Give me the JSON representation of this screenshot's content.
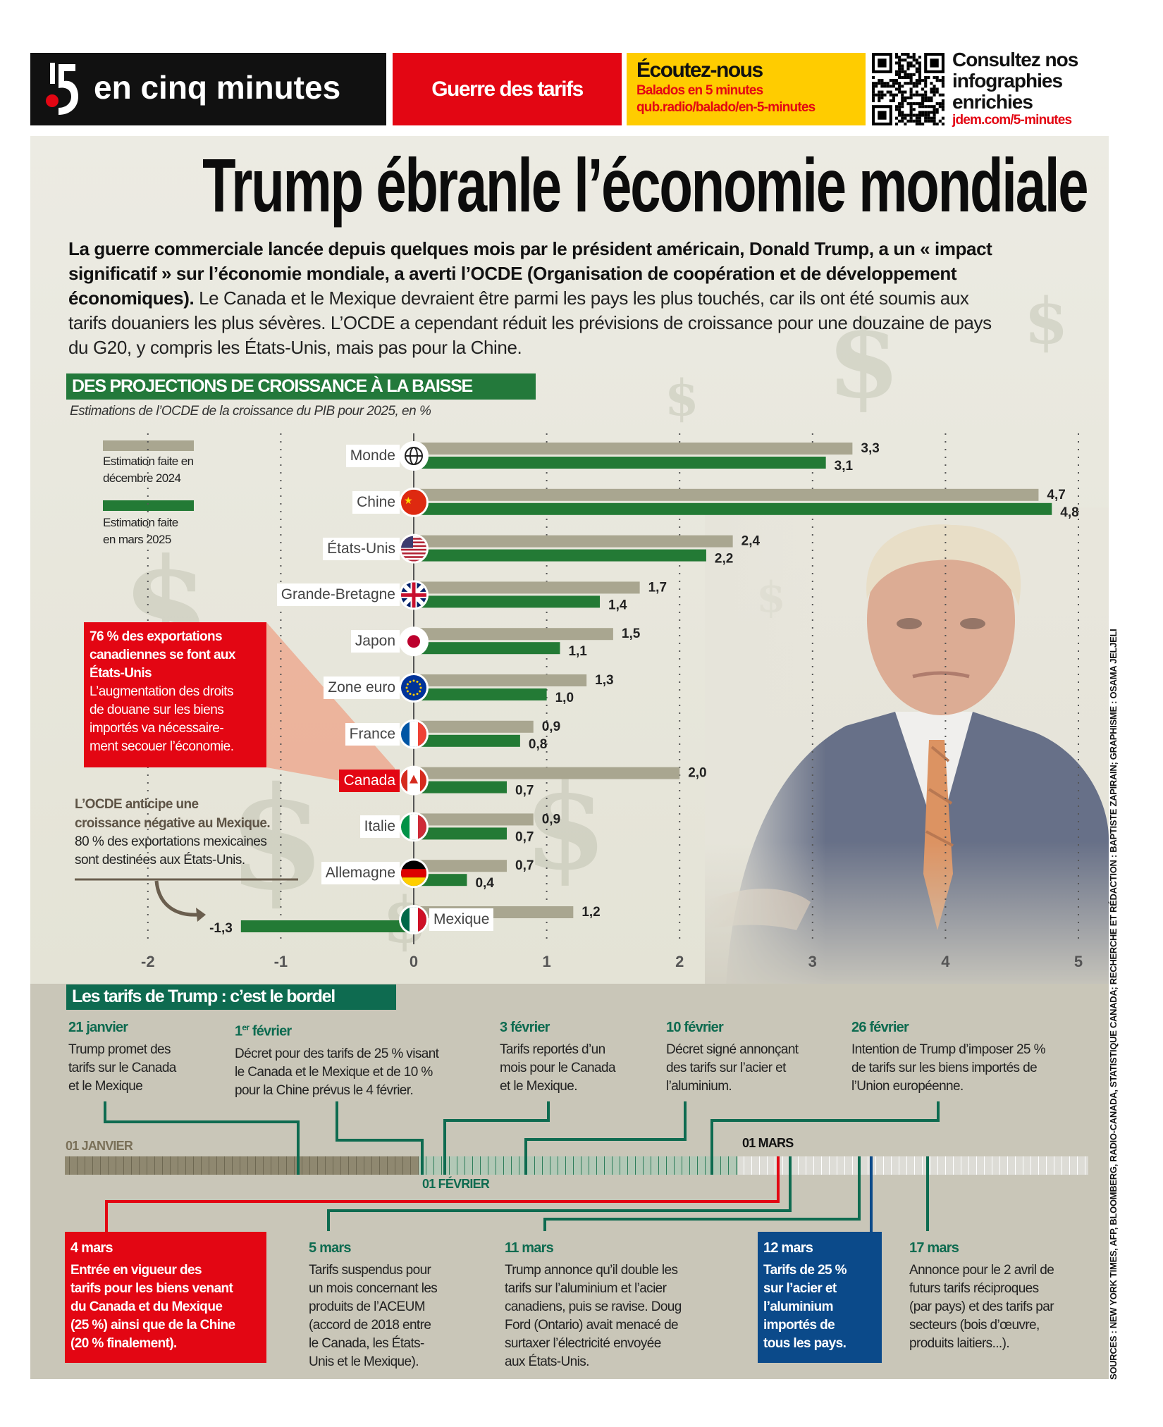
{
  "header": {
    "logo_text": "en cinq minutes",
    "section": "Guerre des tarifs",
    "podcast": {
      "title": "Écoutez-nous",
      "subtitle": "Balados en 5 minutes",
      "url": "qub.radio/balado/en-5-minutes"
    },
    "infographics": {
      "line1": "Consultez nos",
      "line2": "infographies",
      "line3": "enrichies",
      "url": "jdem.com/5-minutes"
    }
  },
  "title": "Trump ébranle l’économie mondiale",
  "intro": {
    "lines": [
      {
        "bold": "La guerre commerciale lancée depuis quelques mois par le président américain, Donald Trump, a un « impact",
        "normal": ""
      },
      {
        "bold": "significatif » sur l’économie mondiale, a averti l’OCDE (Organisation de coopération et de développement",
        "normal": ""
      },
      {
        "bold": "économiques).",
        "normal": " Le Canada et le Mexique devraient être parmi les pays les plus touchés, car ils ont été soumis aux"
      },
      {
        "bold": "",
        "normal": "tarifs douaniers les plus sévères. L’OCDE a cependant réduit les prévisions de croissance pour une douzaine de pays"
      },
      {
        "bold": "",
        "normal": "du G20, y compris les États-Unis, mais pas pour la Chine."
      }
    ]
  },
  "colors": {
    "dec2024": "#a9a690",
    "mar2025": "#237a35",
    "red": "#e30613",
    "timeline_green": "#0e6b50",
    "blue": "#0b4a8a"
  },
  "chart_data": {
    "type": "bar",
    "orientation": "horizontal",
    "title": "DES PROJECTIONS DE CROISSANCE À LA BAISSE",
    "subtitle": "Estimations de l’OCDE de la croissance du PIB pour 2025, en %",
    "categories": [
      "Monde",
      "Chine",
      "États-Unis",
      "Grande-Bretagne",
      "Japon",
      "Zone euro",
      "France",
      "Canada",
      "Italie",
      "Allemagne",
      "Mexique"
    ],
    "series": [
      {
        "name": "Estimation faite en décembre 2024",
        "legend_lines": [
          "Estimation faite en",
          "décembre 2024"
        ],
        "values": [
          3.3,
          4.7,
          2.4,
          1.7,
          1.5,
          1.3,
          0.9,
          2.0,
          0.9,
          0.7,
          1.2
        ],
        "labels": [
          "3,3",
          "4,7",
          "2,4",
          "1,7",
          "1,5",
          "1,3",
          "0,9",
          "2,0",
          "0,9",
          "0,7",
          "1,2"
        ]
      },
      {
        "name": "Estimation faite en mars 2025",
        "legend_lines": [
          "Estimation faite",
          "en mars 2025"
        ],
        "values": [
          3.1,
          4.8,
          2.2,
          1.4,
          1.1,
          1.0,
          0.8,
          0.7,
          0.7,
          0.4,
          -1.3
        ],
        "labels": [
          "3,1",
          "4,8",
          "2,2",
          "1,4",
          "1,1",
          "1,0",
          "0,8",
          "0,7",
          "0,7",
          "0,4",
          "-1,3"
        ]
      }
    ],
    "highlight": "Canada",
    "xlim": [
      -2,
      5
    ],
    "xticks": [
      -2,
      -1,
      0,
      1,
      2,
      3,
      4,
      5
    ],
    "xtick_labels": [
      "-2",
      "-1",
      "0",
      "1",
      "2",
      "3",
      "4",
      "5"
    ],
    "grid": true,
    "legend": "top-left"
  },
  "callouts": {
    "canada": {
      "heading": [
        "76 % des exportations",
        "canadiennes se font aux",
        "États-Unis"
      ],
      "body": [
        "L’augmentation des droits",
        "de douane sur les biens",
        "importés va nécessaire-",
        "ment secouer l’économie."
      ]
    },
    "mexico": {
      "heading": [
        "L’OCDE anticipe une",
        "croissance négative au Mexique."
      ],
      "body": [
        "80 % des exportations mexicaines",
        "sont destinées aux États-Unis."
      ]
    }
  },
  "timeline": {
    "title": "Les tarifs de Trump : c’est le bordel",
    "month_labels": {
      "jan": "01 JANVIER",
      "feb": "01 FÉVRIER",
      "mar": "01 MARS"
    },
    "top_events": [
      {
        "date": "21 janvier",
        "lines": [
          "Trump promet des",
          "tarifs sur le Canada",
          "et le Mexique"
        ]
      },
      {
        "date": "1",
        "date_sup": "er",
        "date_rest": " février",
        "lines": [
          "Décret pour des tarifs de 25 % visant",
          "le Canada et le Mexique et de 10 %",
          "pour la Chine prévus le 4 février."
        ]
      },
      {
        "date": "3 février",
        "lines": [
          "Tarifs reportés d’un",
          "mois pour le Canada",
          "et le Mexique."
        ]
      },
      {
        "date": "10 février",
        "lines": [
          "Décret signé annonçant",
          "des tarifs sur l’acier et",
          "l’aluminium."
        ]
      },
      {
        "date": "26 février",
        "lines": [
          "Intention de Trump d’imposer 25 %",
          "de tarifs sur les biens importés de",
          "l’Union européenne."
        ]
      }
    ],
    "bottom_events": [
      {
        "date": "4 mars",
        "lines": [
          "Entrée en vigueur des",
          "tarifs pour les biens venant",
          "du Canada et du Mexique",
          "(25 %) ainsi que de la Chine",
          "(20 % finalement)."
        ]
      },
      {
        "date": "5 mars",
        "lines": [
          "Tarifs suspendus pour",
          "un mois concernant les",
          "produits de l’ACEUM",
          "(accord de 2018 entre",
          "le Canada, les États-",
          "Unis et le Mexique)."
        ]
      },
      {
        "date": "11 mars",
        "lines": [
          "Trump annonce qu’il double les",
          "tarifs sur l’aluminium et l’acier",
          "canadiens, puis se ravise. Doug",
          "Ford (Ontario) avait menacé de",
          "surtaxer l’électricité envoyée",
          "aux États-Unis."
        ]
      },
      {
        "date": "12 mars",
        "lines": [
          "Tarifs de 25 %",
          "sur l’acier et",
          "l’aluminium",
          "importés de",
          "tous les pays."
        ]
      },
      {
        "date": "17 mars",
        "lines": [
          "Annonce pour le 2 avril de",
          "futurs tarifs réciproques",
          "(par pays) et des tarifs par",
          "secteurs (bois d’œuvre,",
          "produits laitiers...)."
        ]
      }
    ]
  },
  "sources": "SOURCES : NEW YORK TIMES, AFP, BLOOMBERG, RADIO-CANADA, STATISTIQUE CANADA; RECHERCHE ET RÉDACTION : BAPTISTE ZAPIRAIN; GRAPHISME : OSAMA JELJELI"
}
